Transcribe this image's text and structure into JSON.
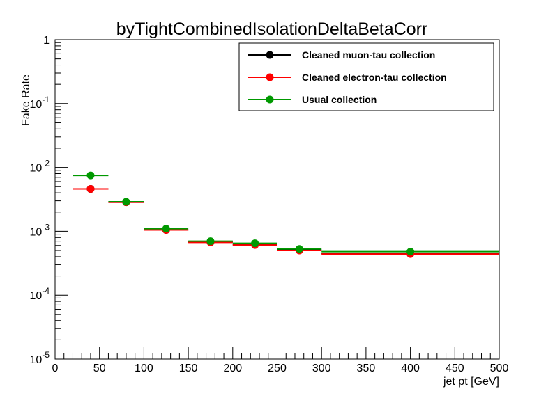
{
  "chart_data": {
    "type": "scatter",
    "title": "byTightCombinedIsolationDeltaBetaCorr",
    "xlabel": "jet pt [GeV]",
    "ylabel": "Fake Rate",
    "xlim": [
      0,
      500
    ],
    "ylim": [
      1e-05,
      1
    ],
    "y_scale": "log",
    "grid": false,
    "legend_position": "top-right",
    "x_ticks": [
      {
        "value": 0,
        "label": "0"
      },
      {
        "value": 50,
        "label": "50"
      },
      {
        "value": 100,
        "label": "100"
      },
      {
        "value": 150,
        "label": "150"
      },
      {
        "value": 200,
        "label": "200"
      },
      {
        "value": 250,
        "label": "250"
      },
      {
        "value": 300,
        "label": "300"
      },
      {
        "value": 350,
        "label": "350"
      },
      {
        "value": 400,
        "label": "400"
      },
      {
        "value": 450,
        "label": "450"
      },
      {
        "value": 500,
        "label": "500"
      }
    ],
    "y_ticks": [
      {
        "value": 1,
        "base": "1",
        "exp": ""
      },
      {
        "value": 0.1,
        "base": "10",
        "exp": "-1"
      },
      {
        "value": 0.01,
        "base": "10",
        "exp": "-2"
      },
      {
        "value": 0.001,
        "base": "10",
        "exp": "-3"
      },
      {
        "value": 0.0001,
        "base": "10",
        "exp": "-4"
      },
      {
        "value": 1e-05,
        "base": "10",
        "exp": "-5"
      }
    ],
    "bins": [
      [
        20,
        60
      ],
      [
        60,
        100
      ],
      [
        100,
        150
      ],
      [
        150,
        200
      ],
      [
        200,
        250
      ],
      [
        250,
        300
      ],
      [
        300,
        500
      ]
    ],
    "series": [
      {
        "name": "Cleaned muon-tau collection",
        "color": "#000000",
        "x": [
          40,
          80,
          125,
          175,
          225,
          275,
          400
        ],
        "y": [
          0.0046,
          0.00285,
          0.00105,
          0.00068,
          0.00062,
          0.00051,
          0.00045
        ]
      },
      {
        "name": "Cleaned electron-tau collection",
        "color": "#ff0000",
        "x": [
          40,
          80,
          125,
          175,
          225,
          275,
          400
        ],
        "y": [
          0.0046,
          0.00285,
          0.00105,
          0.00067,
          0.00061,
          0.0005,
          0.00044
        ]
      },
      {
        "name": "Usual collection",
        "color": "#009900",
        "x": [
          40,
          80,
          125,
          175,
          225,
          275,
          400
        ],
        "y": [
          0.0075,
          0.0029,
          0.0011,
          0.0007,
          0.00065,
          0.00053,
          0.00048
        ]
      }
    ]
  }
}
